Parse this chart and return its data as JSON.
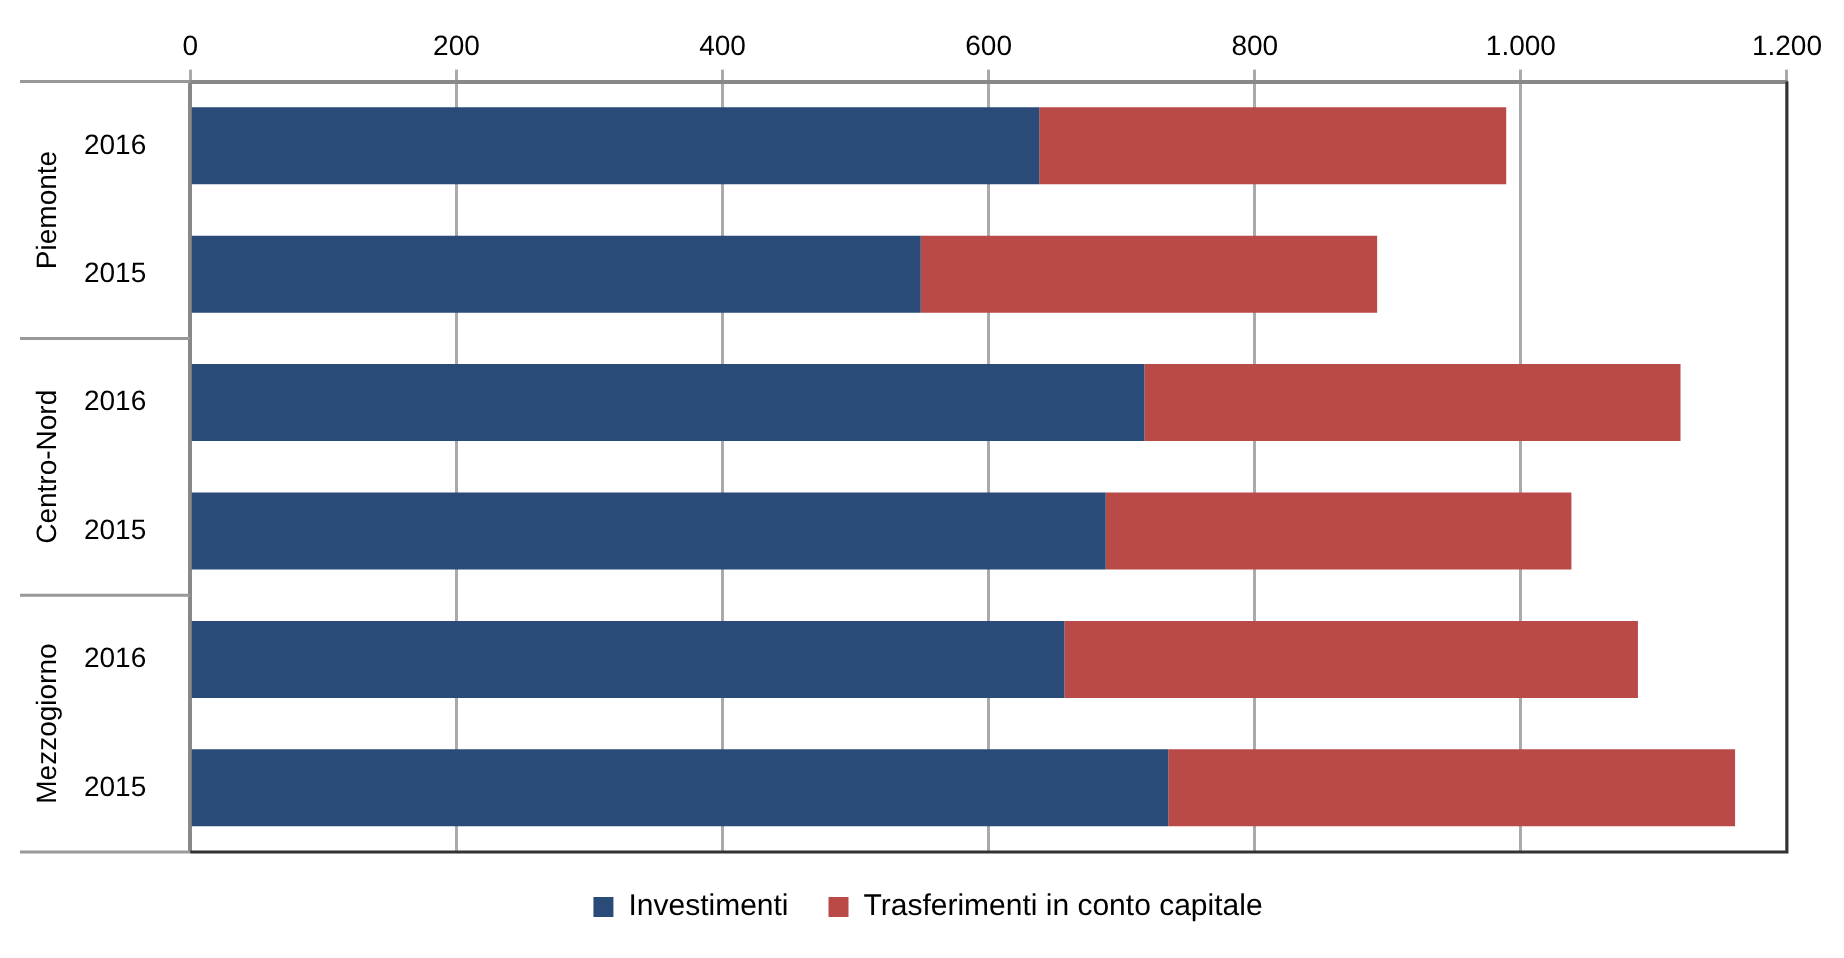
{
  "chart_data": {
    "type": "bar",
    "orientation": "horizontal",
    "stacked": true,
    "categories": [
      "2016",
      "2015",
      "2016",
      "2015",
      "2016",
      "2015"
    ],
    "annotations": [
      "Piemonte",
      "Centro-Nord",
      "Mezzogiorno"
    ],
    "series": [
      {
        "name": "Investimenti",
        "color": "#2a4a78",
        "values": [
          638,
          549,
          717,
          688,
          657,
          735
        ]
      },
      {
        "name": "Trasferimenti in conto capitale",
        "color": "#b94a48",
        "values": [
          351,
          343,
          403,
          350,
          431,
          426
        ]
      }
    ],
    "xlim": [
      0,
      1200
    ],
    "xticks": [
      0,
      200,
      400,
      600,
      800,
      {
        "value": 1000,
        "label": "1.000"
      },
      {
        "value": 1200,
        "label": "1.200"
      }
    ],
    "grid": "x",
    "legend": "bottom"
  }
}
